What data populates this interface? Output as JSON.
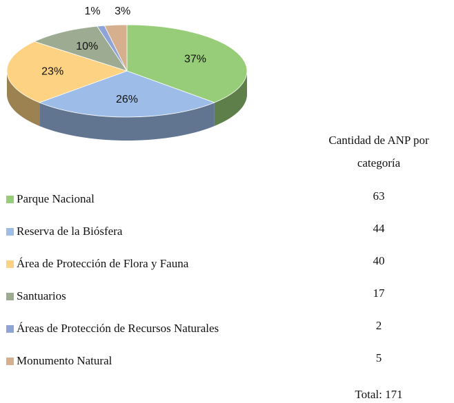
{
  "chart_data": {
    "type": "pie",
    "categories": [
      "Parque Nacional",
      "Reserva de la Biósfera",
      "Área de Protección de Flora y Fauna",
      "Santuarios",
      "Áreas de Protección de Recursos Naturales",
      "Monumento Natural"
    ],
    "values": [
      37,
      26,
      23,
      10,
      1,
      3
    ],
    "value_labels": [
      "37%",
      "26%",
      "23%",
      "10%",
      "1%",
      "3%"
    ],
    "colors": [
      "#97cd78",
      "#9dbde8",
      "#fdd283",
      "#9dab92",
      "#8ea3d6",
      "#d5af8e"
    ],
    "table": {
      "header": [
        "Cantidad de ANP por",
        "categoría"
      ],
      "values": [
        63,
        44,
        40,
        17,
        2,
        5
      ],
      "total": "Total: 171"
    }
  }
}
